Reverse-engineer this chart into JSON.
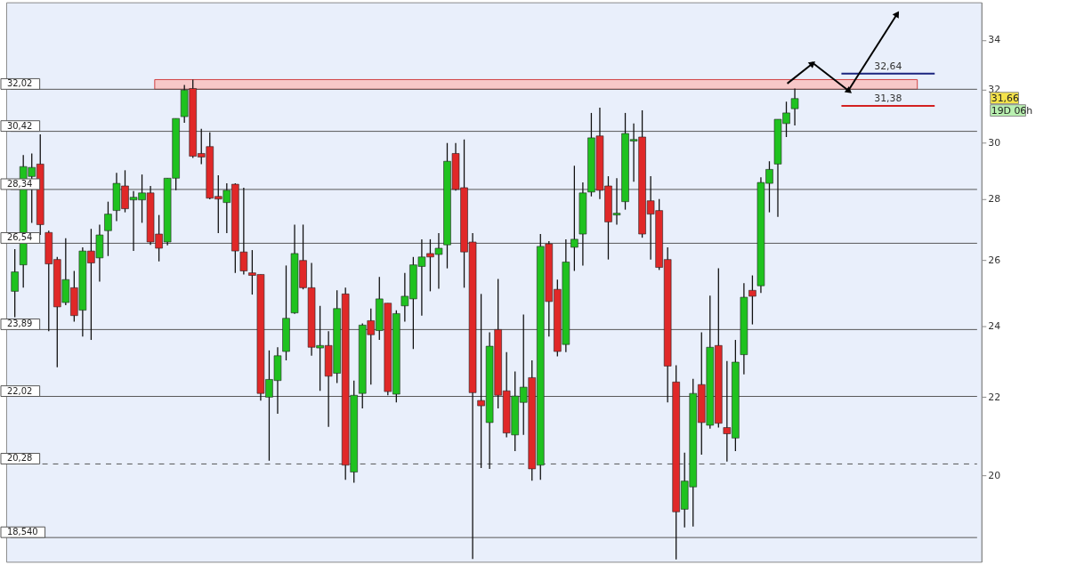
{
  "chart_data": {
    "type": "candlestick",
    "categories": [
      null,
      null,
      null,
      null,
      null,
      null,
      null,
      null,
      null,
      null,
      null,
      null,
      null,
      null,
      null,
      null,
      null,
      null,
      null,
      null,
      null,
      null,
      null,
      null,
      null,
      null,
      null,
      null,
      null,
      null,
      null,
      null,
      null,
      null,
      null,
      null,
      null,
      null,
      null,
      null,
      null,
      null,
      null,
      null,
      null,
      null,
      null,
      null,
      null,
      null,
      null,
      null,
      null,
      null,
      null,
      null,
      null,
      null,
      null,
      null,
      null,
      null,
      null,
      null,
      null,
      null,
      null,
      null,
      null,
      null,
      null,
      null,
      null,
      null,
      null,
      null,
      null,
      null,
      null,
      null,
      null,
      null,
      null,
      null,
      null,
      null,
      null,
      null,
      null,
      null,
      null,
      null,
      null,
      null,
      null,
      null,
      null,
      null,
      null,
      null,
      null,
      null,
      null,
      null,
      null,
      null,
      null,
      null,
      null,
      null,
      null,
      null,
      null,
      null
    ],
    "ohlc": [
      [
        25.03,
        26.35,
        24.25,
        25.63
      ],
      [
        25.85,
        29.55,
        25.14,
        29.14
      ],
      [
        28.79,
        29.61,
        27.21,
        29.11
      ],
      [
        29.23,
        30.31,
        26.81,
        27.15
      ],
      [
        26.89,
        26.95,
        23.84,
        25.88
      ],
      [
        26.02,
        26.1,
        22.82,
        24.56
      ],
      [
        24.69,
        26.7,
        24.61,
        25.39
      ],
      [
        25.14,
        25.66,
        24.12,
        24.3
      ],
      [
        24.46,
        26.41,
        23.69,
        26.29
      ],
      [
        26.29,
        27.01,
        23.59,
        25.91
      ],
      [
        26.07,
        27.15,
        25.33,
        26.81
      ],
      [
        26.95,
        27.92,
        26.13,
        27.5
      ],
      [
        27.62,
        28.92,
        27.27,
        28.55
      ],
      [
        28.46,
        29.01,
        27.56,
        27.68
      ],
      [
        27.98,
        28.28,
        26.29,
        28.07
      ],
      [
        27.98,
        28.86,
        27.21,
        28.22
      ],
      [
        28.22,
        28.46,
        26.49,
        26.58
      ],
      [
        26.84,
        27.47,
        25.96,
        26.38
      ],
      [
        26.58,
        28.73,
        26.47,
        28.73
      ],
      [
        28.73,
        30.9,
        28.31,
        30.9
      ],
      [
        30.97,
        32.19,
        30.74,
        31.99
      ],
      [
        32.05,
        32.4,
        29.45,
        29.51
      ],
      [
        29.61,
        30.51,
        29.23,
        29.48
      ],
      [
        29.86,
        30.38,
        28.0,
        28.04
      ],
      [
        28.1,
        28.83,
        26.87,
        28.01
      ],
      [
        27.89,
        28.55,
        26.87,
        28.31
      ],
      [
        28.52,
        28.55,
        25.6,
        26.29
      ],
      [
        26.26,
        28.4,
        25.55,
        25.66
      ],
      [
        25.6,
        26.32,
        24.93,
        25.52
      ],
      [
        25.55,
        25.55,
        21.91,
        22.1
      ],
      [
        22.0,
        23.29,
        20.36,
        22.48
      ],
      [
        22.45,
        23.38,
        21.56,
        23.14
      ],
      [
        23.26,
        25.83,
        23.01,
        24.22
      ],
      [
        24.38,
        27.15,
        24.35,
        26.21
      ],
      [
        25.99,
        27.15,
        25.09,
        25.14
      ],
      [
        25.14,
        25.91,
        23.14,
        23.38
      ],
      [
        23.36,
        24.59,
        22.17,
        23.43
      ],
      [
        23.43,
        23.84,
        21.22,
        22.57
      ],
      [
        22.65,
        25.06,
        22.38,
        24.51
      ],
      [
        24.95,
        25.14,
        19.89,
        20.25
      ],
      [
        20.08,
        22.45,
        19.82,
        22.05
      ],
      [
        22.1,
        24.07,
        21.7,
        24.02
      ],
      [
        24.15,
        24.51,
        22.34,
        23.74
      ],
      [
        23.86,
        25.47,
        23.59,
        24.8
      ],
      [
        24.67,
        24.67,
        22.05,
        22.15
      ],
      [
        22.08,
        24.46,
        21.86,
        24.36
      ],
      [
        24.59,
        25.6,
        24.12,
        24.88
      ],
      [
        24.8,
        26.1,
        23.33,
        25.85
      ],
      [
        25.8,
        26.67,
        24.3,
        26.1
      ],
      [
        26.21,
        26.67,
        25.03,
        26.1
      ],
      [
        26.18,
        26.87,
        25.11,
        26.38
      ],
      [
        26.49,
        29.99,
        25.74,
        29.33
      ],
      [
        29.61,
        29.99,
        28.3,
        28.34
      ],
      [
        28.4,
        30.12,
        25.14,
        26.26
      ],
      [
        26.58,
        26.87,
        18.06,
        22.12
      ],
      [
        21.91,
        24.95,
        20.18,
        21.77
      ],
      [
        21.33,
        23.81,
        20.16,
        23.41
      ],
      [
        23.89,
        25.41,
        21.7,
        22.05
      ],
      [
        22.17,
        23.24,
        20.95,
        21.06
      ],
      [
        21.01,
        22.7,
        20.6,
        22.03
      ],
      [
        21.86,
        24.33,
        21.01,
        22.27
      ],
      [
        22.53,
        23.01,
        19.87,
        20.16
      ],
      [
        20.25,
        26.84,
        19.89,
        26.44
      ],
      [
        26.52,
        26.61,
        23.69,
        24.72
      ],
      [
        25.09,
        25.39,
        23.12,
        23.26
      ],
      [
        23.46,
        26.67,
        23.24,
        25.94
      ],
      [
        26.41,
        29.17,
        25.66,
        26.67
      ],
      [
        26.84,
        28.58,
        25.83,
        28.22
      ],
      [
        28.25,
        31.11,
        28.1,
        30.18
      ],
      [
        30.25,
        31.31,
        28.01,
        28.31
      ],
      [
        28.46,
        28.8,
        26.02,
        27.24
      ],
      [
        27.47,
        28.73,
        27.15,
        27.53
      ],
      [
        27.92,
        31.11,
        27.65,
        30.34
      ],
      [
        30.06,
        30.71,
        28.61,
        30.12
      ],
      [
        30.21,
        31.21,
        26.72,
        26.84
      ],
      [
        27.95,
        28.8,
        26.02,
        27.5
      ],
      [
        27.62,
        28.01,
        25.69,
        25.77
      ],
      [
        26.02,
        26.41,
        21.86,
        22.85
      ],
      [
        22.41,
        22.87,
        18.05,
        19.13
      ],
      [
        19.19,
        20.56,
        18.77,
        19.86
      ],
      [
        19.72,
        22.5,
        18.79,
        22.1
      ],
      [
        22.34,
        23.81,
        20.51,
        21.33
      ],
      [
        21.26,
        24.9,
        21.17,
        23.38
      ],
      [
        23.43,
        25.74,
        21.2,
        21.31
      ],
      [
        21.2,
        22.99,
        20.34,
        21.04
      ],
      [
        20.93,
        23.59,
        20.6,
        22.96
      ],
      [
        23.17,
        25.28,
        22.62,
        24.85
      ],
      [
        25.06,
        25.52,
        24.04,
        24.88
      ],
      [
        25.2,
        28.76,
        24.98,
        28.58
      ],
      [
        28.55,
        29.33,
        27.56,
        29.04
      ],
      [
        29.23,
        30.87,
        27.41,
        30.87
      ],
      [
        30.71,
        31.54,
        30.21,
        31.11
      ],
      [
        31.27,
        32.05,
        30.64,
        31.66
      ],
      null,
      null,
      null,
      null,
      null,
      null,
      null,
      null,
      null,
      null,
      null,
      null,
      null,
      null,
      null,
      null,
      null,
      null,
      null,
      null,
      null
    ],
    "colors": [
      "#1fc21f",
      "#1fc21f",
      "#1fc21f",
      "#e02828",
      "#e02828",
      "#e02828",
      "#1fc21f",
      "#e02828",
      "#1fc21f",
      "#e02828",
      "#1fc21f",
      "#1fc21f",
      "#1fc21f",
      "#e02828",
      "#1fc21f",
      "#1fc21f",
      "#e02828",
      "#e02828",
      "#1fc21f",
      "#1fc21f",
      "#1fc21f",
      "#e02828",
      "#e02828",
      "#e02828",
      "#e02828",
      "#1fc21f",
      "#e02828",
      "#e02828",
      "#e02828",
      "#e02828",
      "#1fc21f",
      "#1fc21f",
      "#1fc21f",
      "#1fc21f",
      "#e02828",
      "#e02828",
      "#1fc21f",
      "#e02828",
      "#1fc21f",
      "#e02828",
      "#1fc21f",
      "#1fc21f",
      "#e02828",
      "#1fc21f",
      "#e02828",
      "#1fc21f",
      "#1fc21f",
      "#1fc21f",
      "#1fc21f",
      "#e02828",
      "#1fc21f",
      "#1fc21f",
      "#e02828",
      "#e02828",
      "#e02828",
      "#e02828",
      "#1fc21f",
      "#e02828",
      "#e02828",
      "#1fc21f",
      "#1fc21f",
      "#e02828",
      "#1fc21f",
      "#e02828",
      "#e02828",
      "#1fc21f",
      "#1fc21f",
      "#1fc21f",
      "#1fc21f",
      "#e02828",
      "#e02828",
      "#1fc21f",
      "#1fc21f",
      "#1fc21f",
      "#e02828",
      "#e02828",
      "#e02828",
      "#e02828",
      "#e02828",
      "#1fc21f",
      "#1fc21f",
      "#e02828",
      "#1fc21f",
      "#e02828",
      "#e02828",
      "#1fc21f",
      "#1fc21f",
      "#e02828",
      "#1fc21f",
      "#1fc21f",
      "#1fc21f",
      "#1fc21f",
      "#1fc21f",
      null,
      null,
      null,
      null,
      null,
      null,
      null,
      null,
      null,
      null,
      null,
      null,
      null,
      null,
      null,
      null,
      null,
      null,
      null,
      null,
      null
    ],
    "log": true,
    "ylim": [
      18.0,
      35.6
    ],
    "yticks": [
      20,
      22,
      24,
      26,
      28,
      30,
      32,
      34
    ],
    "tick_labels": "y",
    "ref_lines": [
      {
        "axis": "y",
        "value": 32.02,
        "label": "32,02"
      },
      {
        "axis": "y",
        "value": 30.42,
        "label": "30,42"
      },
      {
        "axis": "y",
        "value": 28.34,
        "label": "28,34"
      },
      {
        "axis": "y",
        "value": 26.54,
        "label": "26,54"
      },
      {
        "axis": "y",
        "value": 23.89,
        "label": "23,89"
      },
      {
        "axis": "y",
        "value": 22.02,
        "label": "22,02"
      },
      {
        "axis": "y",
        "value": 20.28,
        "label": "20,28",
        "line_style": "dashed"
      },
      {
        "axis": "y",
        "value": 18.54,
        "label": "18,540"
      },
      {
        "axis": "y",
        "value": 32.64,
        "label": "32,64",
        "color": "#1a237e"
      },
      {
        "axis": "y",
        "value": 31.38,
        "label": "31,38",
        "color": "#d32020"
      }
    ],
    "bands": [
      {
        "axis": "y",
        "from": 32.02,
        "to": 32.4,
        "color": "#f7c8c8"
      }
    ],
    "annotations": [
      "31,66",
      "19D 06h"
    ]
  }
}
